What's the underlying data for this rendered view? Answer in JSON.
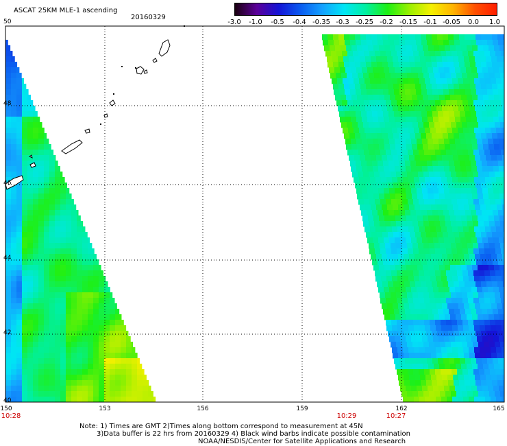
{
  "header": {
    "title": "ASCAT 25KM MLE-1 ascending",
    "date": "20160329"
  },
  "colorbar": {
    "labels": [
      "-3.0",
      "-1.0",
      "-0.5",
      "-0.4",
      "-0.35",
      "-0.3",
      "-0.25",
      "-0.2",
      "-0.15",
      "-0.1",
      "-0.05",
      "0.0",
      "1.0"
    ],
    "colors": [
      "#1a0010",
      "#5b0099",
      "#1414d6",
      "#0a5bf0",
      "#14a0ff",
      "#00e5f5",
      "#00f0a0",
      "#1ef014",
      "#9bf000",
      "#f5f000",
      "#ffb400",
      "#ff5000",
      "#ff1e00"
    ]
  },
  "axes": {
    "lat_labels": [
      "50",
      "48",
      "46",
      "44",
      "42",
      "40"
    ],
    "lon_labels": [
      "150",
      "153",
      "156",
      "159",
      "162",
      "165"
    ],
    "time_labels": [
      "10:28",
      "10:29",
      "10:27"
    ],
    "grid": true
  },
  "footer": {
    "line1": "Note: 1) Times are GMT 2)Times along bottom correspond to measurement at 45N",
    "line2": "3)Data buffer is 22 hrs from 20160329 4) Black wind barbs indicate possible contamination",
    "line3": "NOAA/NESDIS/Center for Satellite Applications and Research"
  }
}
